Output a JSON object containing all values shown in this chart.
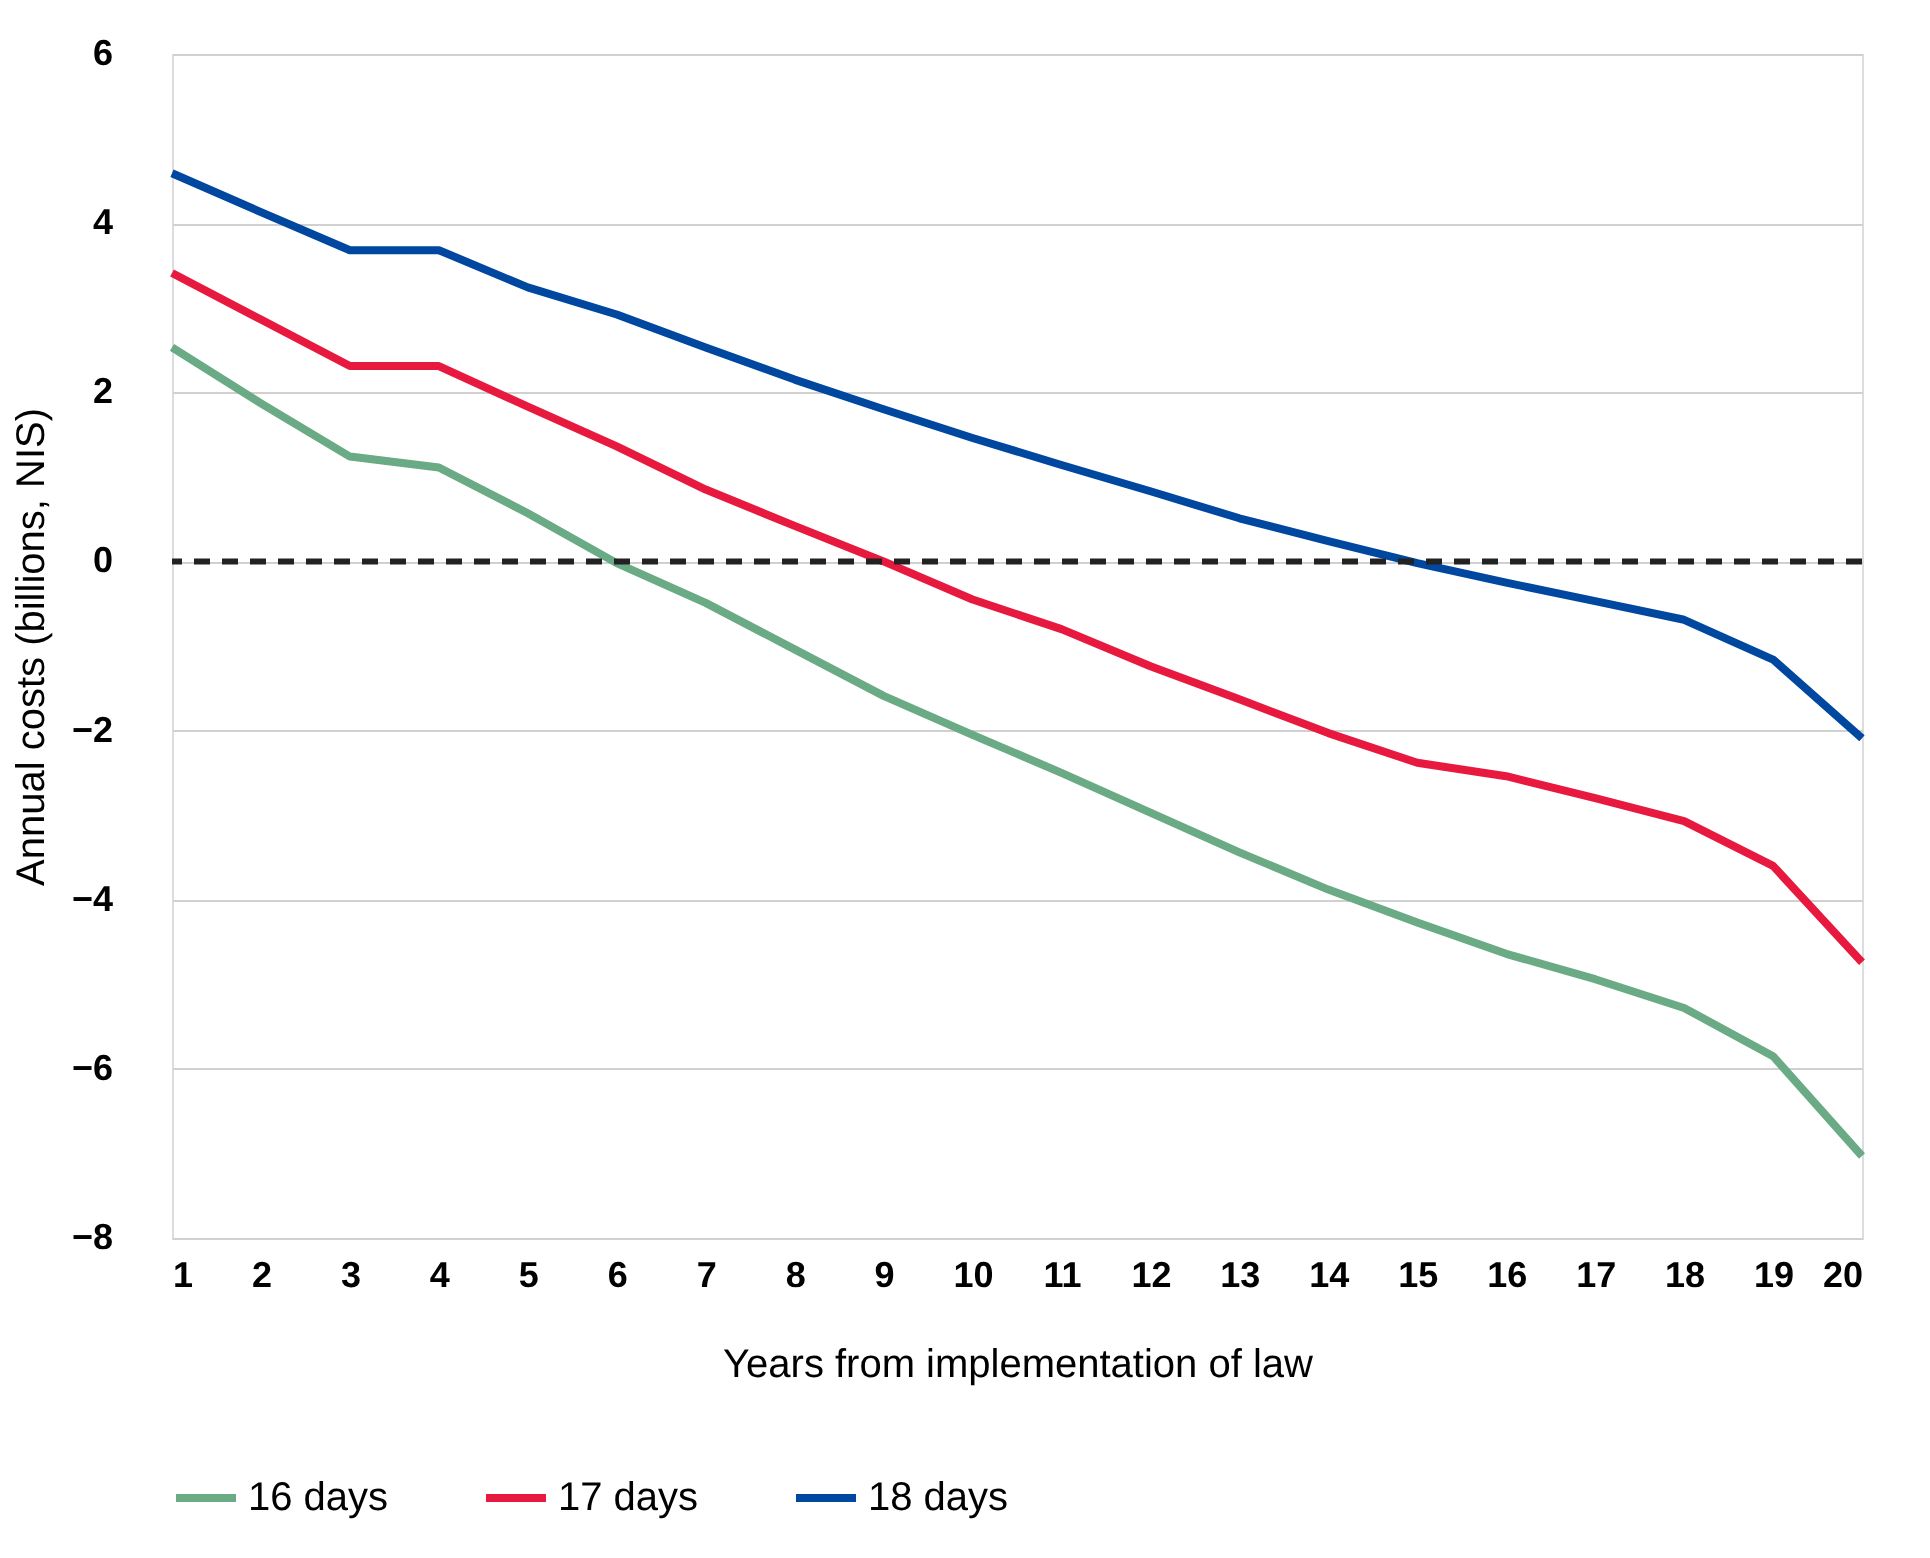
{
  "chart_data": {
    "type": "line",
    "xlabel": "Years from implementation of law",
    "ylabel": "Annual costs (billions, NIS)",
    "x": [
      1,
      2,
      3,
      4,
      5,
      6,
      7,
      8,
      9,
      10,
      11,
      12,
      13,
      14,
      15,
      16,
      17,
      18,
      19,
      20
    ],
    "series": [
      {
        "name": "16 days",
        "color": "#6aaa84",
        "values": [
          2.53,
          1.87,
          1.24,
          1.11,
          0.57,
          -0.02,
          -0.49,
          -1.04,
          -1.59,
          -2.05,
          -2.5,
          -2.97,
          -3.44,
          -3.88,
          -4.27,
          -4.64,
          -4.94,
          -5.28,
          -5.85,
          -7.03
        ]
      },
      {
        "name": "17 days",
        "color": "#e8193f",
        "values": [
          3.41,
          2.86,
          2.31,
          2.31,
          1.83,
          1.36,
          0.85,
          0.42,
          0.0,
          -0.45,
          -0.8,
          -1.24,
          -1.63,
          -2.03,
          -2.38,
          -2.54,
          -2.8,
          -3.07,
          -3.6,
          -4.74
        ]
      },
      {
        "name": "18 days",
        "color": "#0047a0",
        "values": [
          4.59,
          4.13,
          3.68,
          3.68,
          3.24,
          2.92,
          2.53,
          2.15,
          1.8,
          1.46,
          1.14,
          0.83,
          0.51,
          0.24,
          -0.02,
          -0.25,
          -0.47,
          -0.69,
          -1.16,
          -2.09
        ]
      }
    ],
    "xlim": [
      1,
      20
    ],
    "xticks": [
      1,
      2,
      3,
      4,
      5,
      6,
      7,
      8,
      9,
      10,
      11,
      12,
      13,
      14,
      15,
      16,
      17,
      18,
      19,
      20
    ],
    "ylim": [
      -8,
      6
    ],
    "yticks": [
      -8,
      -6,
      -4,
      -2,
      0,
      2,
      4,
      6
    ],
    "grid": "y",
    "legend": "bottom",
    "line_style": "solid",
    "marker": "none",
    "ref_lines": [
      {
        "axis": "y",
        "value": 0,
        "color": "#222222",
        "line_style": "dashed"
      }
    ]
  }
}
